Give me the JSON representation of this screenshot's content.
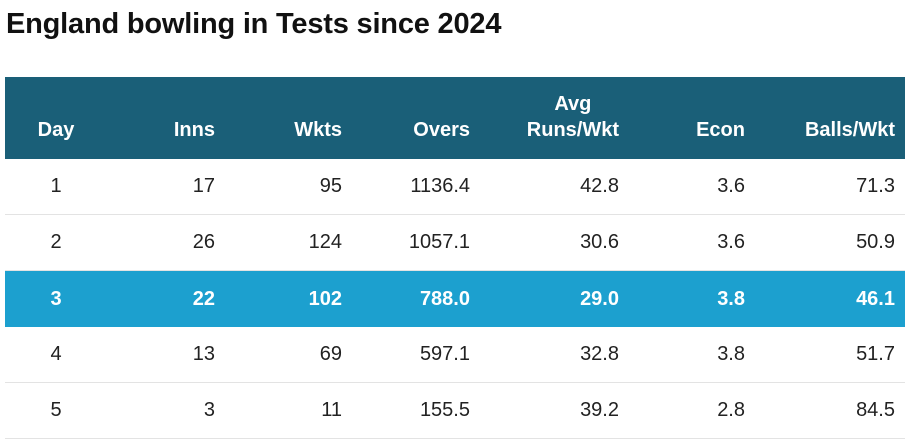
{
  "title": "England bowling in Tests since 2024",
  "chart_data": {
    "type": "table",
    "title": "England bowling in Tests since 2024",
    "columns": [
      "Day",
      "Inns",
      "Wkts",
      "Overs",
      "Avg Runs/Wkt",
      "Econ",
      "Balls/Wkt"
    ],
    "column_lines": [
      [
        "Day"
      ],
      [
        "Inns"
      ],
      [
        "Wkts"
      ],
      [
        "Overs"
      ],
      [
        "Avg",
        "Runs/Wkt"
      ],
      [
        "Econ"
      ],
      [
        "Balls/Wkt"
      ]
    ],
    "rows": [
      [
        "1",
        "17",
        "95",
        "1136.4",
        "42.8",
        "3.6",
        "71.3"
      ],
      [
        "2",
        "26",
        "124",
        "1057.1",
        "30.6",
        "3.6",
        "50.9"
      ],
      [
        "3",
        "22",
        "102",
        "788.0",
        "29.0",
        "3.8",
        "46.1"
      ],
      [
        "4",
        "13",
        "69",
        "597.1",
        "32.8",
        "3.8",
        "51.7"
      ],
      [
        "5",
        "3",
        "11",
        "155.5",
        "39.2",
        "2.8",
        "84.5"
      ]
    ],
    "highlight_row": 2
  },
  "colors": {
    "header_bg": "#1a5f78",
    "highlight_bg": "#1ca0cf",
    "text": "#222222"
  }
}
